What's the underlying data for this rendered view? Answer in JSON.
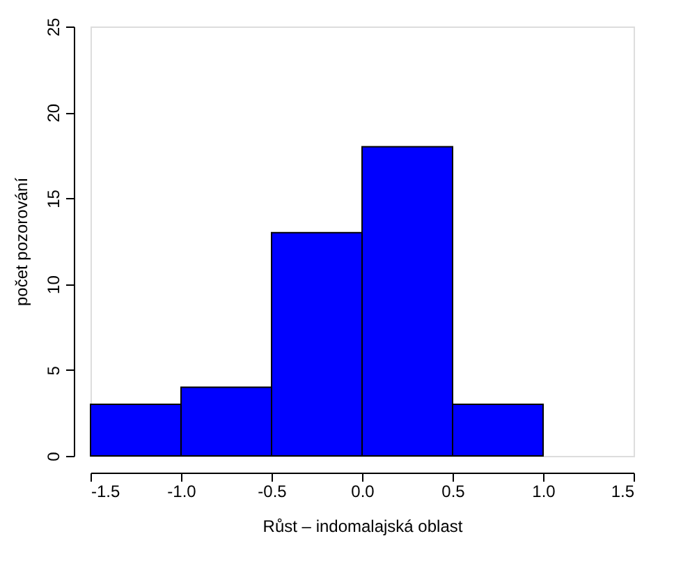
{
  "chart_data": {
    "type": "histogram",
    "xlabel": "Růst – indomalajská oblast",
    "ylabel": "počet pozorování",
    "bins": [
      -1.5,
      -1.0,
      -0.5,
      0.0,
      0.5,
      1.0
    ],
    "values": [
      3,
      4,
      13,
      18,
      3
    ],
    "color": "#0000ff",
    "xlim": [
      -1.5,
      1.5
    ],
    "xticks": [
      {
        "value": -1.5,
        "label": "-1.5"
      },
      {
        "value": -1.0,
        "label": "-1.0"
      },
      {
        "value": -0.5,
        "label": "-0.5"
      },
      {
        "value": 0.0,
        "label": "0.0"
      },
      {
        "value": 0.5,
        "label": "0.5"
      },
      {
        "value": 1.0,
        "label": "1.0"
      },
      {
        "value": 1.5,
        "label": "1.5"
      }
    ],
    "ylim": [
      0,
      25
    ],
    "yticks": [
      0,
      5,
      10,
      15,
      20,
      25
    ],
    "grid": false
  }
}
